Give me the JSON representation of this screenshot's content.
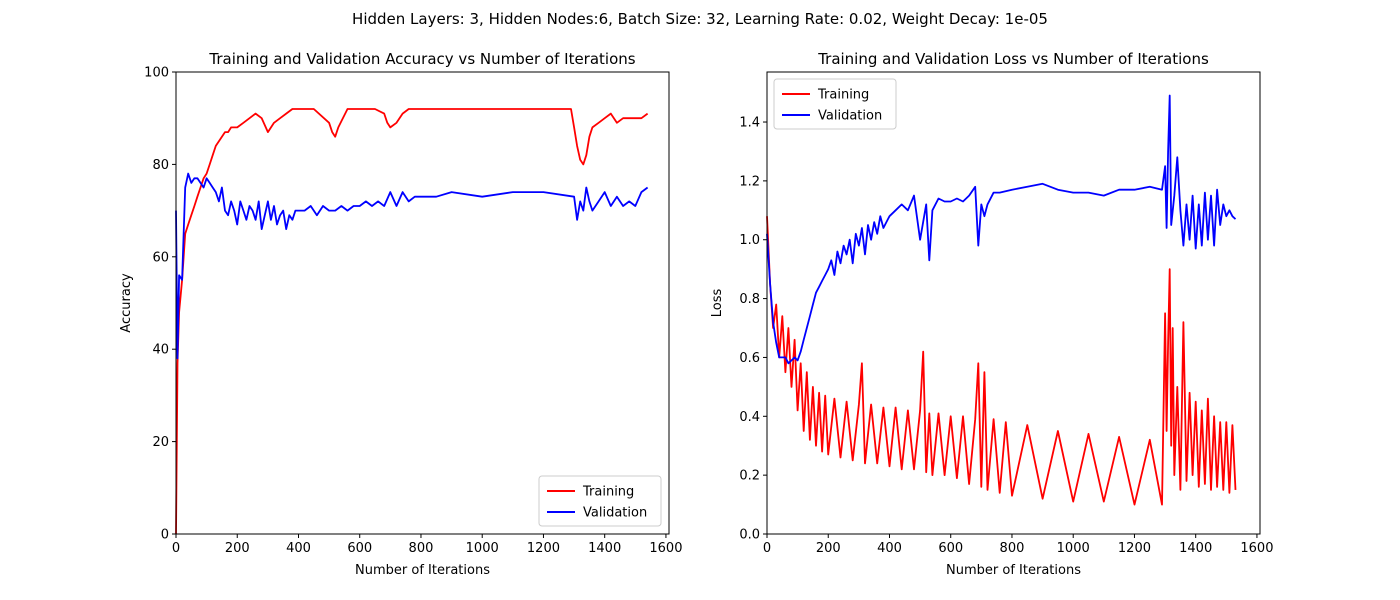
{
  "figure": {
    "suptitle": "Hidden Layers: 3, Hidden Nodes:6, Batch Size: 32, Learning Rate: 0.02, Weight Decay: 1e-05"
  },
  "chart_data": [
    {
      "type": "line",
      "title": "Training and Validation Accuracy vs Number of Iterations",
      "xlabel": "Number of Iterations",
      "ylabel": "Accuracy",
      "xlim": [
        0,
        1610
      ],
      "ylim": [
        0,
        100
      ],
      "xticks": [
        0,
        200,
        400,
        600,
        800,
        1000,
        1200,
        1400,
        1600
      ],
      "yticks": [
        0,
        20,
        40,
        60,
        80,
        100
      ],
      "grid": false,
      "legend_position": "lower-right",
      "series": [
        {
          "name": "Training",
          "color": "#ff0000",
          "x": [
            0,
            5,
            10,
            20,
            30,
            40,
            50,
            60,
            70,
            80,
            90,
            100,
            110,
            120,
            130,
            140,
            150,
            160,
            170,
            180,
            200,
            220,
            240,
            260,
            280,
            300,
            320,
            340,
            360,
            380,
            400,
            450,
            500,
            510,
            520,
            530,
            560,
            600,
            650,
            680,
            690,
            700,
            720,
            740,
            760,
            800,
            900,
            1000,
            1100,
            1200,
            1250,
            1280,
            1290,
            1300,
            1310,
            1320,
            1330,
            1340,
            1350,
            1360,
            1380,
            1400,
            1420,
            1440,
            1460,
            1480,
            1500,
            1520,
            1540
          ],
          "y": [
            0,
            37,
            48,
            55,
            65,
            67,
            69,
            71,
            73,
            75,
            77,
            78,
            80,
            82,
            84,
            85,
            86,
            87,
            87,
            88,
            88,
            89,
            90,
            91,
            90,
            87,
            89,
            90,
            91,
            92,
            92,
            92,
            89,
            87,
            86,
            88,
            92,
            92,
            92,
            91,
            89,
            88,
            89,
            91,
            92,
            92,
            92,
            92,
            92,
            92,
            92,
            92,
            92,
            88,
            84,
            81,
            80,
            82,
            86,
            88,
            89,
            90,
            91,
            89,
            90,
            90,
            90,
            90,
            91
          ]
        },
        {
          "name": "Validation",
          "color": "#0000ff",
          "x": [
            0,
            5,
            10,
            20,
            30,
            40,
            50,
            60,
            70,
            80,
            90,
            100,
            110,
            120,
            130,
            140,
            150,
            160,
            170,
            180,
            190,
            200,
            210,
            220,
            230,
            240,
            250,
            260,
            270,
            280,
            290,
            300,
            310,
            320,
            330,
            340,
            350,
            360,
            370,
            380,
            390,
            400,
            420,
            440,
            460,
            480,
            500,
            520,
            540,
            560,
            580,
            600,
            620,
            640,
            660,
            680,
            700,
            720,
            740,
            760,
            780,
            800,
            850,
            900,
            1000,
            1100,
            1200,
            1300,
            1310,
            1320,
            1330,
            1340,
            1350,
            1360,
            1380,
            1400,
            1420,
            1440,
            1460,
            1480,
            1500,
            1520,
            1540
          ],
          "y": [
            70,
            38,
            56,
            55,
            75,
            78,
            76,
            77,
            77,
            76,
            75,
            77,
            76,
            75,
            74,
            72,
            75,
            70,
            69,
            72,
            70,
            67,
            72,
            70,
            68,
            71,
            70,
            68,
            72,
            66,
            69,
            72,
            68,
            71,
            67,
            69,
            70,
            66,
            69,
            68,
            70,
            70,
            70,
            71,
            69,
            71,
            70,
            70,
            71,
            70,
            71,
            71,
            72,
            71,
            72,
            71,
            74,
            71,
            74,
            72,
            73,
            73,
            73,
            74,
            73,
            74,
            74,
            73,
            68,
            72,
            70,
            75,
            72,
            70,
            72,
            74,
            71,
            73,
            71,
            72,
            71,
            74,
            75
          ]
        }
      ]
    },
    {
      "type": "line",
      "title": "Training and Validation Loss vs Number of Iterations",
      "xlabel": "Number of Iterations",
      "ylabel": "Loss",
      "xlim": [
        0,
        1610
      ],
      "ylim": [
        0,
        1.57
      ],
      "xticks": [
        0,
        200,
        400,
        600,
        800,
        1000,
        1200,
        1400,
        1600
      ],
      "yticks": [
        0.0,
        0.2,
        0.4,
        0.6,
        0.8,
        1.0,
        1.2,
        1.4
      ],
      "grid": false,
      "legend_position": "upper-left",
      "series": [
        {
          "name": "Training",
          "color": "#ff0000",
          "x": [
            0,
            10,
            20,
            30,
            40,
            50,
            60,
            70,
            80,
            90,
            100,
            110,
            120,
            130,
            140,
            150,
            160,
            170,
            180,
            190,
            200,
            220,
            240,
            260,
            280,
            300,
            310,
            320,
            340,
            360,
            380,
            400,
            420,
            440,
            460,
            480,
            500,
            510,
            520,
            530,
            540,
            560,
            580,
            600,
            620,
            640,
            660,
            680,
            690,
            700,
            710,
            720,
            740,
            760,
            780,
            800,
            850,
            900,
            950,
            1000,
            1050,
            1100,
            1150,
            1200,
            1250,
            1290,
            1300,
            1305,
            1310,
            1315,
            1320,
            1325,
            1330,
            1340,
            1350,
            1360,
            1370,
            1380,
            1390,
            1400,
            1410,
            1420,
            1430,
            1440,
            1450,
            1460,
            1470,
            1480,
            1490,
            1500,
            1510,
            1520,
            1530
          ],
          "y": [
            1.08,
            0.85,
            0.7,
            0.78,
            0.6,
            0.74,
            0.55,
            0.7,
            0.5,
            0.66,
            0.42,
            0.58,
            0.35,
            0.55,
            0.32,
            0.5,
            0.3,
            0.48,
            0.28,
            0.47,
            0.27,
            0.46,
            0.26,
            0.45,
            0.25,
            0.44,
            0.58,
            0.24,
            0.44,
            0.24,
            0.43,
            0.23,
            0.43,
            0.22,
            0.42,
            0.22,
            0.42,
            0.62,
            0.21,
            0.41,
            0.2,
            0.41,
            0.2,
            0.4,
            0.19,
            0.4,
            0.17,
            0.39,
            0.58,
            0.16,
            0.55,
            0.15,
            0.39,
            0.14,
            0.38,
            0.13,
            0.37,
            0.12,
            0.35,
            0.11,
            0.34,
            0.11,
            0.33,
            0.1,
            0.32,
            0.1,
            0.75,
            0.35,
            0.65,
            0.9,
            0.3,
            0.7,
            0.2,
            0.5,
            0.15,
            0.72,
            0.18,
            0.48,
            0.2,
            0.45,
            0.16,
            0.42,
            0.17,
            0.46,
            0.15,
            0.4,
            0.16,
            0.38,
            0.15,
            0.38,
            0.14,
            0.37,
            0.15
          ]
        },
        {
          "name": "Validation",
          "color": "#0000ff",
          "x": [
            0,
            10,
            20,
            30,
            40,
            50,
            60,
            70,
            80,
            90,
            100,
            110,
            120,
            130,
            140,
            150,
            160,
            170,
            180,
            190,
            200,
            210,
            220,
            230,
            240,
            250,
            260,
            270,
            280,
            290,
            300,
            310,
            320,
            330,
            340,
            350,
            360,
            370,
            380,
            390,
            400,
            420,
            440,
            460,
            480,
            500,
            520,
            530,
            540,
            560,
            580,
            600,
            620,
            640,
            660,
            680,
            690,
            700,
            710,
            720,
            740,
            760,
            800,
            850,
            900,
            950,
            1000,
            1050,
            1100,
            1150,
            1200,
            1250,
            1290,
            1300,
            1305,
            1310,
            1315,
            1320,
            1330,
            1340,
            1350,
            1360,
            1370,
            1380,
            1390,
            1400,
            1410,
            1420,
            1430,
            1440,
            1450,
            1460,
            1470,
            1480,
            1490,
            1500,
            1510,
            1520,
            1530
          ],
          "y": [
            1.02,
            0.85,
            0.72,
            0.65,
            0.6,
            0.6,
            0.6,
            0.58,
            0.59,
            0.6,
            0.59,
            0.62,
            0.66,
            0.7,
            0.74,
            0.78,
            0.82,
            0.84,
            0.86,
            0.88,
            0.9,
            0.93,
            0.88,
            0.96,
            0.92,
            0.98,
            0.95,
            1.0,
            0.92,
            1.02,
            0.98,
            1.04,
            0.95,
            1.05,
            1.0,
            1.06,
            1.02,
            1.08,
            1.04,
            1.06,
            1.08,
            1.1,
            1.12,
            1.1,
            1.15,
            1.0,
            1.12,
            0.93,
            1.1,
            1.14,
            1.13,
            1.13,
            1.14,
            1.13,
            1.15,
            1.18,
            0.98,
            1.12,
            1.08,
            1.12,
            1.16,
            1.16,
            1.17,
            1.18,
            1.19,
            1.17,
            1.16,
            1.16,
            1.15,
            1.17,
            1.17,
            1.18,
            1.17,
            1.25,
            1.04,
            1.3,
            1.49,
            1.05,
            1.15,
            1.28,
            1.1,
            0.98,
            1.12,
            1.0,
            1.15,
            0.97,
            1.12,
            0.98,
            1.16,
            1.0,
            1.15,
            0.98,
            1.17,
            1.05,
            1.12,
            1.08,
            1.1,
            1.08,
            1.07
          ]
        }
      ]
    }
  ]
}
